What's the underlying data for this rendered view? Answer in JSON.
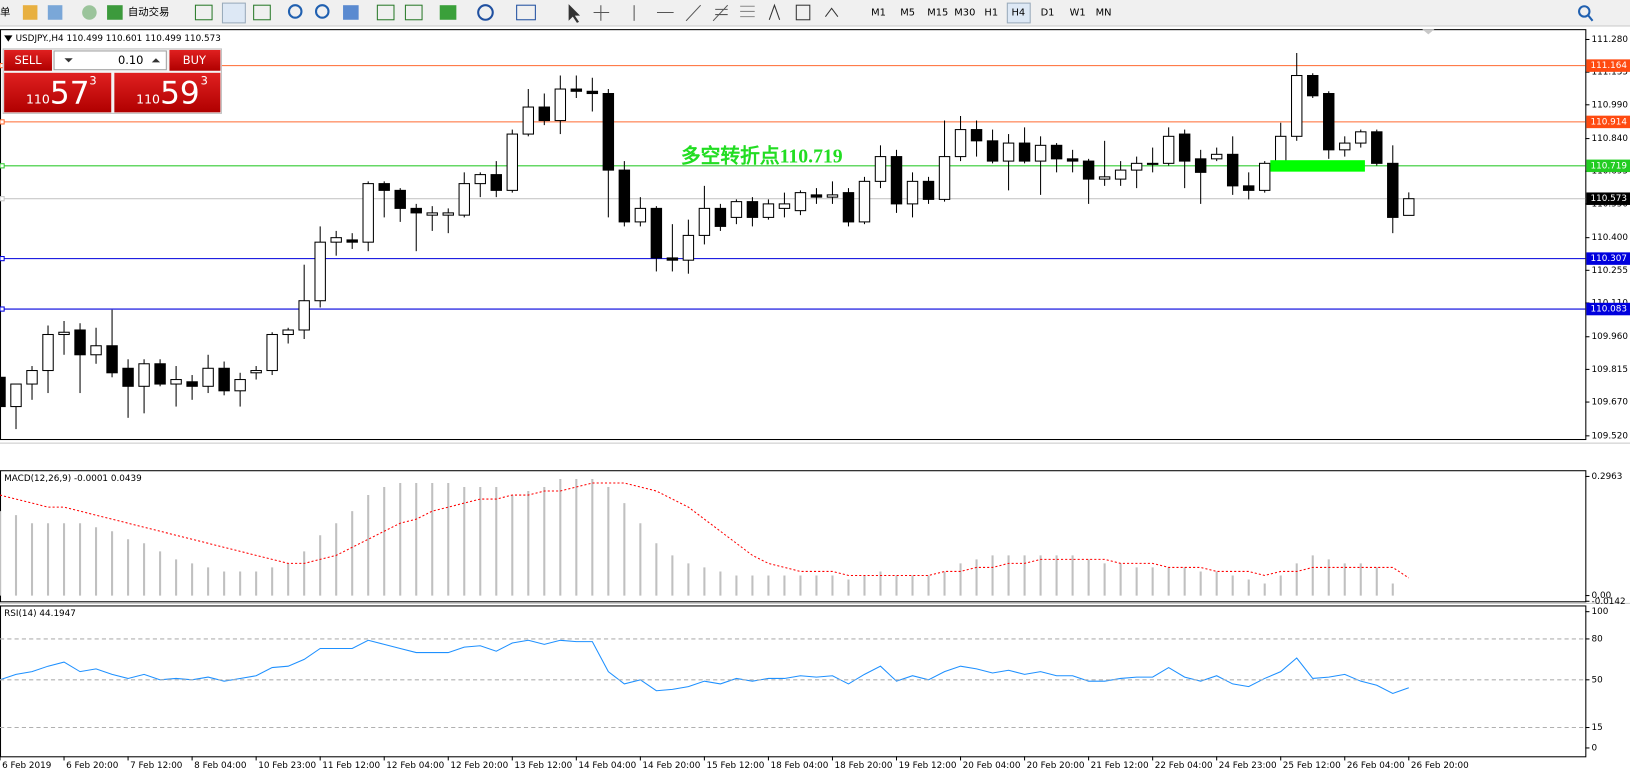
{
  "toolbar": {
    "menu_fragment": "单",
    "auto_trading": "自动交易",
    "timeframes": [
      "M1",
      "M5",
      "M15",
      "M30",
      "H1",
      "H4",
      "D1",
      "W1",
      "MN"
    ],
    "active_timeframe": "H4"
  },
  "trade_panel": {
    "sell": "SELL",
    "buy": "BUY",
    "lot": "0.10",
    "sell_price": {
      "big": "110",
      "pips": "57",
      "point": "3"
    },
    "buy_price": {
      "big": "110",
      "pips": "59",
      "point": "3"
    }
  },
  "chart_data": [
    {
      "type": "candlestick",
      "title": "USDJPY.,H4 110.499 110.601 110.499 110.573",
      "up_color": "#ffffff",
      "down_color": "#000000",
      "categories": [
        "6 Feb 2019",
        null,
        null,
        null,
        "6 Feb 20:00",
        null,
        null,
        null,
        "7 Feb 12:00",
        null,
        null,
        null,
        "8 Feb 04:00",
        null,
        null,
        null,
        "10 Feb 23:00",
        null,
        null,
        null,
        "11 Feb 12:00",
        null,
        null,
        null,
        "12 Feb 04:00",
        null,
        null,
        null,
        "12 Feb 20:00",
        null,
        null,
        null,
        "13 Feb 12:00",
        null,
        null,
        null,
        "14 Feb 04:00",
        null,
        null,
        null,
        "14 Feb 20:00",
        null,
        null,
        null,
        "15 Feb 12:00",
        null,
        null,
        null,
        "18 Feb 04:00",
        null,
        null,
        null,
        "18 Feb 20:00",
        null,
        null,
        null,
        "19 Feb 12:00",
        null,
        null,
        null,
        "20 Feb 04:00",
        null,
        null,
        null,
        "20 Feb 20:00",
        null,
        null,
        null,
        "21 Feb 12:00",
        null,
        null,
        null,
        "22 Feb 04:00",
        null,
        null,
        null,
        "24 Feb 23:00",
        null,
        null,
        null,
        "25 Feb 12:00",
        null,
        null,
        null,
        "26 Feb 04:00",
        null,
        null,
        null,
        "26 Feb 20:00"
      ],
      "ohlc": [
        [
          109.78,
          109.83,
          109.65,
          109.65
        ],
        [
          109.65,
          109.75,
          109.55,
          109.75
        ],
        [
          109.75,
          109.83,
          109.68,
          109.81
        ],
        [
          109.81,
          110.01,
          109.71,
          109.97
        ],
        [
          109.97,
          110.03,
          109.88,
          109.98
        ],
        [
          109.99,
          110.02,
          109.71,
          109.88
        ],
        [
          109.88,
          110.0,
          109.84,
          109.92
        ],
        [
          109.92,
          110.08,
          109.78,
          109.8
        ],
        [
          109.82,
          109.86,
          109.6,
          109.74
        ],
        [
          109.74,
          109.86,
          109.62,
          109.84
        ],
        [
          109.84,
          109.86,
          109.74,
          109.75
        ],
        [
          109.75,
          109.83,
          109.65,
          109.77
        ],
        [
          109.76,
          109.79,
          109.68,
          109.74
        ],
        [
          109.74,
          109.88,
          109.71,
          109.82
        ],
        [
          109.82,
          109.85,
          109.7,
          109.72
        ],
        [
          109.72,
          109.8,
          109.65,
          109.77
        ],
        [
          109.8,
          109.83,
          109.77,
          109.81
        ],
        [
          109.81,
          109.98,
          109.79,
          109.97
        ],
        [
          109.97,
          110.0,
          109.93,
          109.99
        ],
        [
          109.99,
          110.28,
          109.95,
          110.12
        ],
        [
          110.12,
          110.45,
          110.09,
          110.38
        ],
        [
          110.38,
          110.43,
          110.32,
          110.4
        ],
        [
          110.39,
          110.42,
          110.35,
          110.38
        ],
        [
          110.38,
          110.65,
          110.34,
          110.64
        ],
        [
          110.64,
          110.65,
          110.49,
          110.61
        ],
        [
          110.61,
          110.62,
          110.47,
          110.53
        ],
        [
          110.53,
          110.55,
          110.34,
          110.51
        ],
        [
          110.5,
          110.54,
          110.43,
          110.51
        ],
        [
          110.5,
          110.53,
          110.42,
          110.51
        ],
        [
          110.5,
          110.69,
          110.49,
          110.64
        ],
        [
          110.64,
          110.69,
          110.58,
          110.68
        ],
        [
          110.68,
          110.74,
          110.58,
          110.61
        ],
        [
          110.61,
          110.88,
          110.6,
          110.86
        ],
        [
          110.86,
          111.06,
          110.85,
          110.98
        ],
        [
          110.98,
          111.04,
          110.9,
          110.92
        ],
        [
          110.92,
          111.12,
          110.86,
          111.06
        ],
        [
          111.06,
          111.12,
          111.02,
          111.05
        ],
        [
          111.05,
          111.11,
          110.96,
          111.04
        ],
        [
          111.04,
          111.06,
          110.49,
          110.7
        ],
        [
          110.7,
          110.74,
          110.45,
          110.47
        ],
        [
          110.47,
          110.58,
          110.45,
          110.53
        ],
        [
          110.53,
          110.54,
          110.25,
          110.31
        ],
        [
          110.31,
          110.46,
          110.25,
          110.3
        ],
        [
          110.3,
          110.48,
          110.24,
          110.41
        ],
        [
          110.41,
          110.63,
          110.37,
          110.53
        ],
        [
          110.53,
          110.55,
          110.43,
          110.45
        ],
        [
          110.49,
          110.57,
          110.46,
          110.56
        ],
        [
          110.56,
          110.58,
          110.45,
          110.49
        ],
        [
          110.49,
          110.57,
          110.48,
          110.55
        ],
        [
          110.53,
          110.6,
          110.49,
          110.55
        ],
        [
          110.52,
          110.61,
          110.5,
          110.6
        ],
        [
          110.59,
          110.62,
          110.55,
          110.58
        ],
        [
          110.58,
          110.65,
          110.55,
          110.59
        ],
        [
          110.6,
          110.62,
          110.45,
          110.47
        ],
        [
          110.47,
          110.67,
          110.46,
          110.65
        ],
        [
          110.65,
          110.81,
          110.62,
          110.76
        ],
        [
          110.76,
          110.79,
          110.51,
          110.55
        ],
        [
          110.55,
          110.69,
          110.49,
          110.65
        ],
        [
          110.65,
          110.67,
          110.55,
          110.57
        ],
        [
          110.57,
          110.92,
          110.56,
          110.76
        ],
        [
          110.76,
          110.94,
          110.74,
          110.88
        ],
        [
          110.88,
          110.92,
          110.76,
          110.83
        ],
        [
          110.83,
          110.88,
          110.73,
          110.74
        ],
        [
          110.74,
          110.86,
          110.61,
          110.82
        ],
        [
          110.82,
          110.89,
          110.73,
          110.74
        ],
        [
          110.74,
          110.85,
          110.59,
          110.81
        ],
        [
          110.81,
          110.82,
          110.69,
          110.75
        ],
        [
          110.75,
          110.79,
          110.69,
          110.74
        ],
        [
          110.74,
          110.75,
          110.55,
          110.66
        ],
        [
          110.66,
          110.83,
          110.63,
          110.67
        ],
        [
          110.66,
          110.74,
          110.63,
          110.7
        ],
        [
          110.7,
          110.76,
          110.62,
          110.73
        ],
        [
          110.73,
          110.8,
          110.69,
          110.73
        ],
        [
          110.73,
          110.89,
          110.72,
          110.85
        ],
        [
          110.86,
          110.88,
          110.62,
          110.74
        ],
        [
          110.75,
          110.79,
          110.55,
          110.69
        ],
        [
          110.75,
          110.8,
          110.74,
          110.77
        ],
        [
          110.77,
          110.85,
          110.59,
          110.63
        ],
        [
          110.63,
          110.69,
          110.57,
          110.61
        ],
        [
          110.61,
          110.74,
          110.6,
          110.73
        ],
        [
          110.73,
          110.91,
          110.72,
          110.85
        ],
        [
          110.85,
          111.22,
          110.83,
          111.12
        ],
        [
          111.12,
          111.13,
          111.02,
          111.03
        ],
        [
          111.04,
          111.05,
          110.75,
          110.79
        ],
        [
          110.79,
          110.85,
          110.76,
          110.82
        ],
        [
          110.82,
          110.88,
          110.8,
          110.87
        ],
        [
          110.87,
          110.88,
          110.72,
          110.73
        ],
        [
          110.73,
          110.81,
          110.42,
          110.49
        ],
        [
          110.499,
          110.601,
          110.499,
          110.573
        ]
      ],
      "ylim": [
        109.506,
        111.326
      ],
      "yticks": [
        {
          "value": 111.28,
          "label": "111.280"
        },
        111.135,
        {
          "value": 110.99,
          "label": "110.990"
        },
        {
          "value": 110.84,
          "label": "110.840"
        },
        110.695,
        {
          "value": 110.55,
          "label": "110.550"
        },
        {
          "value": 110.4,
          "label": "110.400"
        },
        110.255,
        {
          "value": 110.11,
          "label": "110.110"
        },
        {
          "value": 109.96,
          "label": "109.960"
        },
        109.815,
        {
          "value": 109.67,
          "label": "109.670"
        },
        {
          "value": 109.52,
          "label": "109.520"
        }
      ],
      "levels": [
        {
          "value": 111.164,
          "color": "#ff6a30",
          "label_color": "#ff4a10"
        },
        {
          "value": 110.914,
          "color": "#ff6a30",
          "label_color": "#ff4a10"
        },
        {
          "value": 110.719,
          "color": "#33cc33",
          "label_color": "#22cc22"
        },
        {
          "value": 110.573,
          "color": "#c8c8c8",
          "label_color": "#000000"
        },
        {
          "value": 110.307,
          "color": "#0000dd",
          "label_color": "#0000dd"
        },
        {
          "value": 110.083,
          "color": "#0000dd",
          "label_color": "#0000dd"
        }
      ],
      "annotation": {
        "text": "多空转折点110.719",
        "color": "#22dd22"
      }
    },
    {
      "type": "macd",
      "title": "MACD(12,26,9) -0.0001 0.0439",
      "histogram": {
        "color": "#c0c0c0",
        "values": [
          0.21,
          0.2,
          0.18,
          0.18,
          0.18,
          0.18,
          0.17,
          0.16,
          0.14,
          0.13,
          0.11,
          0.09,
          0.08,
          0.07,
          0.06,
          0.06,
          0.06,
          0.07,
          0.08,
          0.11,
          0.15,
          0.18,
          0.21,
          0.25,
          0.27,
          0.28,
          0.28,
          0.28,
          0.28,
          0.27,
          0.27,
          0.27,
          0.25,
          0.26,
          0.27,
          0.29,
          0.29,
          0.29,
          0.27,
          0.23,
          0.18,
          0.13,
          0.1,
          0.08,
          0.07,
          0.06,
          0.05,
          0.05,
          0.05,
          0.05,
          0.05,
          0.05,
          0.05,
          0.04,
          0.05,
          0.06,
          0.05,
          0.05,
          0.05,
          0.06,
          0.08,
          0.09,
          0.1,
          0.1,
          0.1,
          0.1,
          0.1,
          0.1,
          0.09,
          0.08,
          0.08,
          0.07,
          0.07,
          0.07,
          0.07,
          0.06,
          0.06,
          0.05,
          0.04,
          0.03,
          0.05,
          0.08,
          0.1,
          0.09,
          0.08,
          0.08,
          0.07,
          0.03,
          -0.0001
        ]
      },
      "signal": {
        "color": "#ff0000",
        "values": [
          0.25,
          0.24,
          0.23,
          0.22,
          0.22,
          0.21,
          0.2,
          0.19,
          0.18,
          0.17,
          0.16,
          0.15,
          0.14,
          0.13,
          0.12,
          0.11,
          0.1,
          0.09,
          0.08,
          0.08,
          0.09,
          0.1,
          0.12,
          0.14,
          0.16,
          0.18,
          0.19,
          0.21,
          0.22,
          0.23,
          0.24,
          0.24,
          0.25,
          0.25,
          0.26,
          0.26,
          0.27,
          0.28,
          0.28,
          0.28,
          0.27,
          0.26,
          0.24,
          0.22,
          0.19,
          0.16,
          0.13,
          0.1,
          0.08,
          0.07,
          0.06,
          0.06,
          0.06,
          0.05,
          0.05,
          0.05,
          0.05,
          0.05,
          0.05,
          0.06,
          0.06,
          0.07,
          0.07,
          0.08,
          0.08,
          0.09,
          0.09,
          0.09,
          0.09,
          0.09,
          0.08,
          0.08,
          0.08,
          0.07,
          0.07,
          0.07,
          0.06,
          0.06,
          0.06,
          0.05,
          0.06,
          0.06,
          0.07,
          0.07,
          0.07,
          0.07,
          0.07,
          0.07,
          0.0439
        ]
      },
      "ylim": [
        -0.0142,
        0.2963
      ],
      "yticks": [
        0.2963,
        {
          "value": 0,
          "label": "0.00"
        },
        -0.0142
      ]
    },
    {
      "type": "line",
      "title": "RSI(14) 44.1947",
      "color": "#1e90ff",
      "values": [
        50,
        54,
        56,
        60,
        63,
        56,
        58,
        54,
        51,
        54,
        50,
        51,
        50,
        52,
        49,
        51,
        53,
        59,
        60,
        65,
        73,
        73,
        73,
        79,
        76,
        73,
        70,
        70,
        70,
        74,
        75,
        71,
        77,
        79,
        76,
        79,
        78,
        78,
        56,
        47,
        50,
        42,
        43,
        45,
        49,
        47,
        51,
        49,
        51,
        51,
        53,
        52,
        53,
        47,
        54,
        60,
        49,
        53,
        50,
        56,
        60,
        58,
        55,
        57,
        54,
        56,
        53,
        53,
        49,
        49,
        51,
        52,
        52,
        59,
        52,
        49,
        53,
        47,
        45,
        51,
        56,
        66,
        51,
        52,
        54,
        49,
        46,
        40,
        44.1947
      ],
      "ylim": [
        0,
        100
      ],
      "yticks": [
        100,
        80,
        50,
        15,
        0
      ]
    }
  ]
}
